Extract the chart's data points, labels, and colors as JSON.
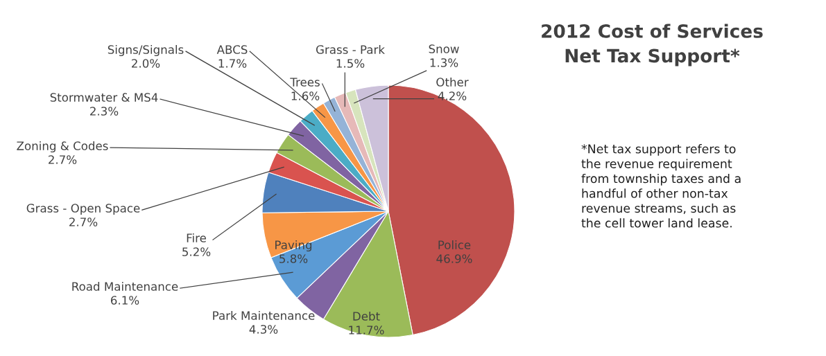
{
  "chart_data": {
    "type": "pie",
    "title": "2012 Cost of Services\nNet Tax Support*",
    "categories": [
      "Police",
      "Debt",
      "Park Maintenance",
      "Road Maintenance",
      "Paving",
      "Fire",
      "Grass - Open Space",
      "Zoning & Codes",
      "Stormwater & MS4",
      "Signs/Signals",
      "ABCS",
      "Trees",
      "Grass - Park",
      "Snow",
      "Other"
    ],
    "values": [
      46.9,
      11.7,
      4.3,
      6.1,
      5.8,
      5.2,
      2.7,
      2.7,
      2.3,
      2.0,
      1.7,
      1.6,
      1.5,
      1.3,
      4.2
    ],
    "value_labels": [
      "46.9%",
      "11.7%",
      "4.3%",
      "6.1%",
      "5.8%",
      "5.2%",
      "2.7%",
      "2.7%",
      "2.3%",
      "2.0%",
      "1.7%",
      "1.6%",
      "1.5%",
      "1.3%",
      "4.2%"
    ],
    "colors": [
      "#c0504d",
      "#9bbb59",
      "#8064a2",
      "#5b9bd5",
      "#f79646",
      "#4f81bd",
      "#d9534f",
      "#9bbb59",
      "#8064a2",
      "#4bacc6",
      "#f79646",
      "#95b3d7",
      "#e6b9b8",
      "#d7e4bd",
      "#ccc1da"
    ],
    "annotations": [
      "*Net tax support refers to\nthe revenue requirement\nfrom township taxes and a\nhandful of other non-tax\nrevenue streams, such as\nthe cell tower land lease."
    ],
    "legend": false
  }
}
